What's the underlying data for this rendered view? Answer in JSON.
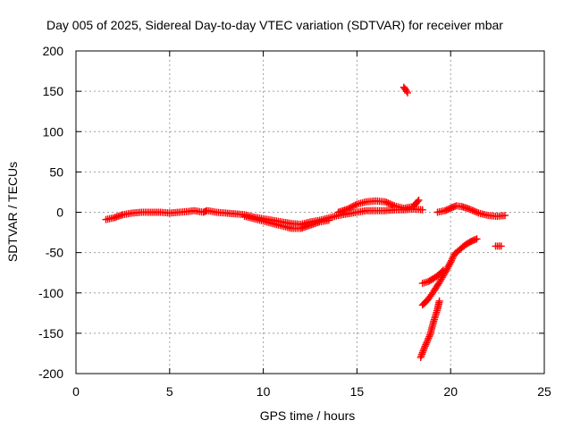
{
  "chart_data": {
    "type": "scatter",
    "title": "Day 005 of 2025, Sidereal Day-to-day VTEC variation (SDTVAR) for receiver mbar",
    "xlabel": "GPS time / hours",
    "ylabel": "SDTVAR / TECUs",
    "xlim": [
      0,
      25
    ],
    "ylim": [
      -200,
      200
    ],
    "xticks": [
      0,
      5,
      10,
      15,
      20,
      25
    ],
    "yticks": [
      -200,
      -150,
      -100,
      -50,
      0,
      50,
      100,
      150,
      200
    ],
    "grid": true,
    "marker": "+",
    "color": "#ff0000",
    "series": [
      {
        "name": "main-band",
        "points": [
          [
            1.6,
            -9
          ],
          [
            2.0,
            -7
          ],
          [
            2.5,
            -3
          ],
          [
            3.0,
            -1
          ],
          [
            3.5,
            0
          ],
          [
            4.0,
            0
          ],
          [
            4.5,
            0
          ],
          [
            5.0,
            -1
          ],
          [
            5.5,
            0
          ],
          [
            6.0,
            1
          ],
          [
            6.3,
            2
          ],
          [
            6.8,
            0
          ],
          [
            7.0,
            2
          ],
          [
            7.5,
            0
          ],
          [
            8.0,
            -1
          ],
          [
            8.5,
            -2
          ],
          [
            9.0,
            -3
          ],
          [
            9.5,
            -6
          ],
          [
            10.0,
            -8
          ],
          [
            10.5,
            -10
          ],
          [
            11.0,
            -12
          ],
          [
            11.5,
            -14
          ],
          [
            12.0,
            -15
          ],
          [
            12.5,
            -12
          ],
          [
            13.0,
            -10
          ],
          [
            13.5,
            -7
          ],
          [
            14.0,
            -4
          ],
          [
            14.5,
            -2
          ],
          [
            15.0,
            0
          ],
          [
            15.5,
            2
          ],
          [
            16.0,
            2
          ],
          [
            16.5,
            2
          ],
          [
            17.0,
            3
          ],
          [
            17.5,
            3
          ],
          [
            18.0,
            4
          ],
          [
            18.5,
            3
          ]
        ]
      },
      {
        "name": "upper-band",
        "points": [
          [
            14.0,
            0
          ],
          [
            14.5,
            4
          ],
          [
            15.0,
            10
          ],
          [
            15.5,
            13
          ],
          [
            16.0,
            14
          ],
          [
            16.5,
            13
          ],
          [
            17.0,
            8
          ],
          [
            17.5,
            5
          ],
          [
            18.0,
            7
          ],
          [
            18.3,
            15
          ]
        ]
      },
      {
        "name": "lower-band-branch",
        "points": [
          [
            9.0,
            -5
          ],
          [
            9.5,
            -8
          ],
          [
            10.0,
            -11
          ],
          [
            10.5,
            -14
          ],
          [
            11.0,
            -17
          ],
          [
            11.5,
            -20
          ],
          [
            12.0,
            -20
          ],
          [
            12.5,
            -16
          ],
          [
            13.0,
            -12
          ],
          [
            13.5,
            -10
          ]
        ]
      },
      {
        "name": "evening-band",
        "points": [
          [
            19.3,
            0
          ],
          [
            19.7,
            2
          ],
          [
            20.0,
            5
          ],
          [
            20.3,
            8
          ],
          [
            20.6,
            7
          ],
          [
            21.0,
            4
          ],
          [
            21.5,
            -1
          ],
          [
            22.0,
            -4
          ],
          [
            22.5,
            -5
          ],
          [
            22.9,
            -4
          ]
        ]
      },
      {
        "name": "high-outlier",
        "points": [
          [
            17.5,
            155
          ],
          [
            17.6,
            152
          ],
          [
            17.7,
            148
          ]
        ]
      },
      {
        "name": "recovery-curve",
        "points": [
          [
            18.5,
            -115
          ],
          [
            18.8,
            -108
          ],
          [
            19.1,
            -98
          ],
          [
            19.4,
            -87
          ],
          [
            19.7,
            -75
          ],
          [
            20.0,
            -62
          ],
          [
            20.2,
            -52
          ],
          [
            20.5,
            -46
          ],
          [
            20.8,
            -40
          ],
          [
            21.1,
            -36
          ],
          [
            21.4,
            -33
          ]
        ]
      },
      {
        "name": "recovery-branch",
        "points": [
          [
            18.5,
            -88
          ],
          [
            18.8,
            -86
          ],
          [
            19.1,
            -82
          ],
          [
            19.4,
            -77
          ],
          [
            19.6,
            -72
          ]
        ]
      },
      {
        "name": "drop-segment",
        "points": [
          [
            18.4,
            -180
          ],
          [
            18.6,
            -168
          ],
          [
            18.9,
            -152
          ],
          [
            19.1,
            -135
          ],
          [
            19.3,
            -120
          ],
          [
            19.4,
            -110
          ]
        ]
      },
      {
        "name": "end-segment",
        "points": [
          [
            22.4,
            -42
          ],
          [
            22.7,
            -42
          ]
        ]
      }
    ]
  }
}
